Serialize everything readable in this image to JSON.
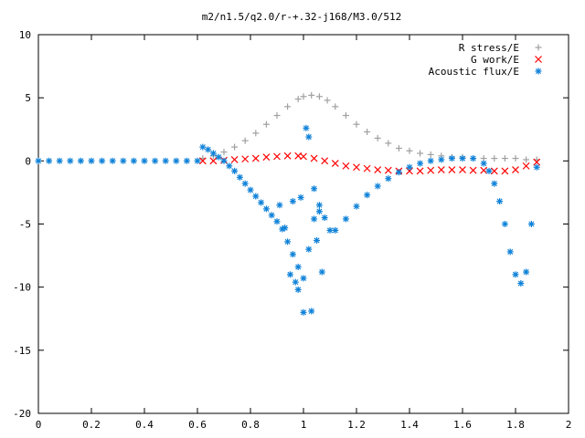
{
  "chart_data": {
    "type": "scatter",
    "title": "m2/n1.5/q2.0/r-+.32-j168/M3.0/512",
    "xlabel": "",
    "ylabel": "",
    "xlim": [
      0,
      2
    ],
    "ylim": [
      -20,
      10
    ],
    "x_ticks": [
      "0",
      "0.2",
      "0.4",
      "0.6",
      "0.8",
      "1",
      "1.2",
      "1.4",
      "1.6",
      "1.8",
      "2"
    ],
    "y_ticks": [
      "10",
      "5",
      "0",
      "-5",
      "-10",
      "-15",
      "-20"
    ],
    "grid": false,
    "legend_position": "top-right",
    "series": [
      {
        "name": "R stress/E",
        "marker": "plus",
        "color": "#a0a0a0",
        "x": [
          0.62,
          0.66,
          0.7,
          0.74,
          0.78,
          0.82,
          0.86,
          0.9,
          0.94,
          0.98,
          1.0,
          1.03,
          1.06,
          1.09,
          1.12,
          1.16,
          1.2,
          1.24,
          1.28,
          1.32,
          1.36,
          1.4,
          1.44,
          1.48,
          1.52,
          1.56,
          1.6,
          1.64,
          1.68,
          1.72,
          1.76,
          1.8,
          1.84,
          1.88
        ],
        "y": [
          0.2,
          0.4,
          0.7,
          1.1,
          1.6,
          2.2,
          2.9,
          3.6,
          4.3,
          4.9,
          5.1,
          5.2,
          5.1,
          4.8,
          4.3,
          3.6,
          2.9,
          2.3,
          1.8,
          1.4,
          1.0,
          0.8,
          0.6,
          0.5,
          0.4,
          0.3,
          0.3,
          0.2,
          0.2,
          0.2,
          0.2,
          0.2,
          0.1,
          0.1
        ]
      },
      {
        "name": "G work/E",
        "marker": "cross",
        "color": "#ff0000",
        "x": [
          0.62,
          0.66,
          0.7,
          0.74,
          0.78,
          0.82,
          0.86,
          0.9,
          0.94,
          0.98,
          1.0,
          1.04,
          1.08,
          1.12,
          1.16,
          1.2,
          1.24,
          1.28,
          1.32,
          1.36,
          1.4,
          1.44,
          1.48,
          1.52,
          1.56,
          1.6,
          1.64,
          1.68,
          1.72,
          1.76,
          1.8,
          1.84,
          1.88
        ],
        "y": [
          0.0,
          0.0,
          0.05,
          0.1,
          0.15,
          0.2,
          0.3,
          0.35,
          0.4,
          0.4,
          0.35,
          0.2,
          0.0,
          -0.2,
          -0.4,
          -0.5,
          -0.6,
          -0.7,
          -0.75,
          -0.8,
          -0.8,
          -0.8,
          -0.75,
          -0.7,
          -0.7,
          -0.7,
          -0.75,
          -0.75,
          -0.8,
          -0.8,
          -0.7,
          -0.4,
          -0.1
        ]
      },
      {
        "name": "Acoustic flux/E",
        "marker": "star",
        "color": "#0f82d8",
        "x": [
          0.0,
          0.04,
          0.08,
          0.12,
          0.16,
          0.2,
          0.24,
          0.28,
          0.32,
          0.36,
          0.4,
          0.44,
          0.48,
          0.52,
          0.56,
          0.6,
          0.62,
          0.64,
          0.66,
          0.68,
          0.7,
          0.72,
          0.74,
          0.76,
          0.78,
          0.8,
          0.82,
          0.84,
          0.86,
          0.88,
          0.9,
          0.92,
          0.94,
          0.96,
          0.98,
          1.0,
          1.02,
          1.04,
          1.06,
          1.08,
          1.1,
          1.12,
          1.16,
          1.2,
          1.24,
          1.28,
          1.32,
          1.36,
          1.4,
          1.44,
          1.48,
          1.52,
          1.56,
          1.6,
          1.64,
          1.68,
          1.7,
          1.72,
          1.74,
          1.76,
          1.78,
          1.8,
          1.82,
          1.84,
          1.86,
          1.88,
          0.96,
          0.97,
          0.98,
          0.99,
          1.0,
          1.01,
          1.02,
          1.03,
          1.04,
          1.05,
          1.06,
          1.07,
          0.95,
          0.93,
          0.91
        ],
        "y": [
          0,
          0,
          0,
          0,
          0,
          0,
          0,
          0,
          0,
          0,
          0,
          0,
          0,
          0,
          0,
          0,
          1.1,
          0.9,
          0.6,
          0.3,
          0.0,
          -0.4,
          -0.8,
          -1.3,
          -1.8,
          -2.3,
          -2.8,
          -3.3,
          -3.8,
          -4.3,
          -4.8,
          -5.4,
          -6.4,
          -7.4,
          -8.4,
          -9.3,
          -7.0,
          -4.6,
          -3.5,
          -4.5,
          -5.5,
          -5.5,
          -4.6,
          -3.6,
          -2.7,
          -2.0,
          -1.4,
          -0.9,
          -0.5,
          -0.2,
          0.0,
          0.1,
          0.2,
          0.2,
          0.2,
          -0.2,
          -0.8,
          -1.8,
          -3.2,
          -5.0,
          -7.2,
          -9.0,
          -9.7,
          -8.8,
          -5.0,
          -0.5,
          -3.2,
          -9.6,
          -10.2,
          -2.9,
          -12.0,
          2.6,
          1.9,
          -11.9,
          -2.2,
          -6.3,
          -4.0,
          -8.8,
          -9.0,
          -5.3,
          -3.5
        ]
      }
    ]
  }
}
